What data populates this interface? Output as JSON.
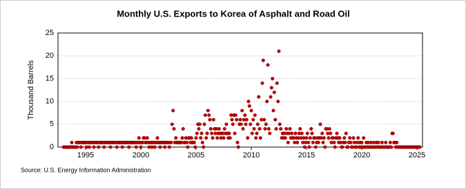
{
  "chart_data": {
    "type": "scatter",
    "title": "Monthly U.S. Exports to Korea of Asphalt and Road Oil",
    "y_label": "Thousand Barrels",
    "source": "Source: U.S. Energy Information Administration",
    "xlim": [
      1992.5,
      2025.5
    ],
    "xticks": [
      1995,
      2000,
      2005,
      2010,
      2015,
      2020,
      2025
    ],
    "ylim": [
      0,
      25
    ],
    "yticks": [
      0,
      5,
      10,
      15,
      20,
      25
    ],
    "grid": true,
    "series": [
      {
        "color": "#c00000",
        "x": [
          1993,
          1993.08,
          1993.17,
          1993.25,
          1993.33,
          1993.42,
          1993.5,
          1993.58,
          1993.67,
          1993.75,
          1993.83,
          1993.92,
          1994,
          1994.08,
          1994.17,
          1994.25,
          1994.33,
          1994.42,
          1994.5,
          1994.58,
          1994.67,
          1994.75,
          1994.83,
          1994.92,
          1995,
          1995.08,
          1995.17,
          1995.25,
          1995.33,
          1995.42,
          1995.5,
          1995.58,
          1995.67,
          1995.75,
          1995.83,
          1995.92,
          1996,
          1996.08,
          1996.17,
          1996.25,
          1996.33,
          1996.42,
          1996.5,
          1996.58,
          1996.67,
          1996.75,
          1996.83,
          1996.92,
          1997,
          1997.08,
          1997.17,
          1997.25,
          1997.33,
          1997.42,
          1997.5,
          1997.58,
          1997.67,
          1997.75,
          1997.83,
          1997.92,
          1998,
          1998.08,
          1998.17,
          1998.25,
          1998.33,
          1998.42,
          1998.5,
          1998.58,
          1998.67,
          1998.75,
          1998.83,
          1998.92,
          1999,
          1999.08,
          1999.17,
          1999.25,
          1999.33,
          1999.42,
          1999.5,
          1999.58,
          1999.67,
          1999.75,
          1999.83,
          1999.92,
          2000,
          2000.08,
          2000.17,
          2000.25,
          2000.33,
          2000.42,
          2000.5,
          2000.58,
          2000.67,
          2000.75,
          2000.83,
          2000.92,
          2001,
          2001.08,
          2001.17,
          2001.25,
          2001.33,
          2001.42,
          2001.5,
          2001.58,
          2001.67,
          2001.75,
          2001.83,
          2001.92,
          2002,
          2002.08,
          2002.17,
          2002.25,
          2002.33,
          2002.42,
          2002.5,
          2002.58,
          2002.67,
          2002.75,
          2002.83,
          2002.92,
          2003,
          2003.08,
          2003.17,
          2003.25,
          2003.33,
          2003.42,
          2003.5,
          2003.58,
          2003.67,
          2003.75,
          2003.83,
          2003.92,
          2004,
          2004.08,
          2004.17,
          2004.25,
          2004.33,
          2004.42,
          2004.5,
          2004.58,
          2004.67,
          2004.75,
          2004.83,
          2004.92,
          2005,
          2005.08,
          2005.17,
          2005.25,
          2005.33,
          2005.42,
          2005.5,
          2005.58,
          2005.67,
          2005.75,
          2005.83,
          2005.92,
          2006,
          2006.08,
          2006.17,
          2006.25,
          2006.33,
          2006.42,
          2006.5,
          2006.58,
          2006.67,
          2006.75,
          2006.83,
          2006.92,
          2007,
          2007.08,
          2007.17,
          2007.25,
          2007.33,
          2007.42,
          2007.5,
          2007.58,
          2007.67,
          2007.75,
          2007.83,
          2007.92,
          2008,
          2008.08,
          2008.17,
          2008.25,
          2008.33,
          2008.42,
          2008.5,
          2008.58,
          2008.67,
          2008.75,
          2008.83,
          2008.92,
          2009,
          2009.08,
          2009.17,
          2009.25,
          2009.33,
          2009.42,
          2009.5,
          2009.58,
          2009.67,
          2009.75,
          2009.83,
          2009.92,
          2010,
          2010.08,
          2010.17,
          2010.25,
          2010.33,
          2010.42,
          2010.5,
          2010.58,
          2010.67,
          2010.75,
          2010.83,
          2010.92,
          2011,
          2011.08,
          2011.17,
          2011.25,
          2011.33,
          2011.42,
          2011.5,
          2011.58,
          2011.67,
          2011.75,
          2011.83,
          2011.92,
          2012,
          2012.08,
          2012.17,
          2012.25,
          2012.33,
          2012.42,
          2012.5,
          2012.58,
          2012.67,
          2012.75,
          2012.83,
          2012.92,
          2013,
          2013.08,
          2013.17,
          2013.25,
          2013.33,
          2013.42,
          2013.5,
          2013.58,
          2013.67,
          2013.75,
          2013.83,
          2013.92,
          2014,
          2014.08,
          2014.17,
          2014.25,
          2014.33,
          2014.42,
          2014.5,
          2014.58,
          2014.67,
          2014.75,
          2014.83,
          2014.92,
          2015,
          2015.08,
          2015.17,
          2015.25,
          2015.33,
          2015.42,
          2015.5,
          2015.58,
          2015.67,
          2015.75,
          2015.83,
          2015.92,
          2016,
          2016.08,
          2016.17,
          2016.25,
          2016.33,
          2016.42,
          2016.5,
          2016.58,
          2016.67,
          2016.75,
          2016.83,
          2016.92,
          2017,
          2017.08,
          2017.17,
          2017.25,
          2017.33,
          2017.42,
          2017.5,
          2017.58,
          2017.67,
          2017.75,
          2017.83,
          2017.92,
          2018,
          2018.08,
          2018.17,
          2018.25,
          2018.33,
          2018.42,
          2018.5,
          2018.58,
          2018.67,
          2018.75,
          2018.83,
          2018.92,
          2019,
          2019.08,
          2019.17,
          2019.25,
          2019.33,
          2019.42,
          2019.5,
          2019.58,
          2019.67,
          2019.75,
          2019.83,
          2019.92,
          2020,
          2020.08,
          2020.17,
          2020.25,
          2020.33,
          2020.42,
          2020.5,
          2020.58,
          2020.67,
          2020.75,
          2020.83,
          2020.92,
          2021,
          2021.08,
          2021.17,
          2021.25,
          2021.33,
          2021.42,
          2021.5,
          2021.58,
          2021.67,
          2021.75,
          2021.83,
          2021.92,
          2022,
          2022.08,
          2022.17,
          2022.25,
          2022.33,
          2022.42,
          2022.5,
          2022.58,
          2022.67,
          2022.75,
          2022.83,
          2022.92,
          2023,
          2023.08,
          2023.17,
          2023.25,
          2023.33,
          2023.42,
          2023.5,
          2023.58,
          2023.67,
          2023.75,
          2023.83,
          2023.92,
          2024,
          2024.08,
          2024.17,
          2024.25,
          2024.33,
          2024.42,
          2024.5,
          2024.58,
          2024.67,
          2024.75,
          2024.83,
          2024.92,
          2025,
          2025.08,
          2025.17,
          2025.25
        ],
        "values": [
          0,
          0,
          0,
          0,
          0,
          0,
          0,
          0,
          0,
          1,
          0,
          0,
          0,
          0,
          1,
          0,
          1,
          1,
          1,
          0,
          1,
          1,
          1,
          1,
          1,
          0,
          1,
          1,
          0,
          1,
          1,
          1,
          1,
          0,
          1,
          1,
          1,
          1,
          0,
          1,
          1,
          1,
          1,
          1,
          0,
          1,
          1,
          1,
          1,
          1,
          1,
          0,
          1,
          1,
          1,
          1,
          1,
          1,
          0,
          1,
          1,
          1,
          1,
          1,
          0,
          1,
          1,
          1,
          1,
          1,
          1,
          0,
          1,
          1,
          1,
          1,
          1,
          1,
          1,
          0,
          1,
          1,
          2,
          1,
          0,
          1,
          1,
          2,
          2,
          1,
          1,
          2,
          1,
          0,
          1,
          1,
          0,
          1,
          1,
          0,
          1,
          1,
          2,
          1,
          1,
          0,
          1,
          1,
          1,
          1,
          0,
          1,
          1,
          1,
          1,
          0,
          1,
          1,
          5,
          8,
          4,
          1,
          2,
          1,
          1,
          1,
          1,
          1,
          1,
          2,
          4,
          1,
          1,
          2,
          1,
          0,
          2,
          2,
          1,
          2,
          1,
          1,
          1,
          0,
          2,
          3,
          5,
          4,
          5,
          2,
          3,
          1,
          0,
          5,
          7,
          2,
          3,
          8,
          7,
          6,
          4,
          3,
          2,
          6,
          4,
          3,
          4,
          2,
          3,
          4,
          3,
          2,
          3,
          3,
          2,
          4,
          3,
          5,
          3,
          2,
          3,
          2,
          7,
          6,
          5,
          7,
          3,
          7,
          6,
          1,
          0,
          5,
          6,
          5,
          8,
          4,
          6,
          7,
          5,
          6,
          2,
          10,
          9,
          5,
          8,
          3,
          6,
          4,
          7,
          2,
          3,
          5,
          11,
          4,
          2,
          6,
          14,
          19,
          6,
          4,
          5,
          10,
          18,
          4,
          3,
          11,
          13,
          15,
          8,
          12,
          6,
          4,
          14,
          10,
          21,
          5,
          4,
          2,
          3,
          2,
          3,
          2,
          4,
          3,
          1,
          3,
          4,
          2,
          3,
          2,
          2,
          1,
          3,
          2,
          1,
          2,
          3,
          4,
          2,
          3,
          1,
          2,
          0,
          1,
          2,
          3,
          1,
          0,
          2,
          4,
          3,
          1,
          2,
          2,
          0,
          1,
          2,
          1,
          2,
          5,
          2,
          3,
          1,
          2,
          0,
          4,
          4,
          3,
          2,
          4,
          3,
          1,
          2,
          2,
          1,
          0,
          2,
          3,
          2,
          1,
          2,
          1,
          0,
          0,
          1,
          2,
          1,
          3,
          0,
          0,
          1,
          2,
          1,
          0,
          0,
          2,
          1,
          0,
          0,
          1,
          2,
          0,
          1,
          0,
          1,
          0,
          2,
          0,
          0,
          1,
          0,
          1,
          0,
          0,
          1,
          0,
          0,
          1,
          0,
          0,
          1,
          0,
          1,
          0,
          0,
          0,
          1,
          0,
          0,
          0,
          1,
          0,
          0,
          0,
          0,
          1,
          0,
          3,
          3,
          1,
          1,
          0,
          1,
          0,
          0,
          0,
          0,
          0,
          0,
          0,
          0,
          0,
          0,
          0,
          0,
          0,
          0,
          0,
          0,
          0,
          0,
          0,
          0,
          0,
          0,
          0,
          0,
          0
        ]
      }
    ]
  }
}
